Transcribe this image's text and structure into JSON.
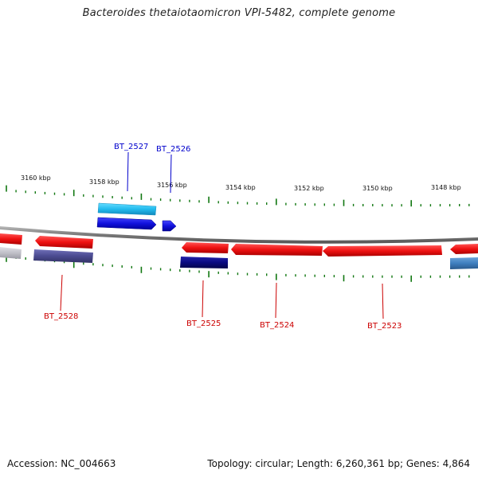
{
  "title": "Bacteroides thetaiotaomicron VPI-5482, complete genome",
  "footer": {
    "accession": "Accession: NC_004663",
    "summary": "Topology: circular; Length: 6,260,361 bp; Genes: 4,864"
  },
  "colors": {
    "backbone": "#8a8a8a",
    "tick": "#117711",
    "label_blue": "#0000cc",
    "label_red": "#cc0000",
    "red_gene": "#ee1111",
    "blue_gene": "#1111dd",
    "cyan_gene": "#22bbee",
    "navy_gene": "#0a0a80",
    "slate_gene": "#4a4a90",
    "steel_gene": "#3f7fbf",
    "gray_gene": "#c0c0c8"
  },
  "kbp_labels": [
    "3160 kbp",
    "3158 kbp",
    "3156 kbp",
    "3154 kbp",
    "3152 kbp",
    "3150 kbp",
    "3148 kbp"
  ],
  "genes": [
    {
      "label": "BT_2527",
      "color": "blue"
    },
    {
      "label": "BT_2526",
      "color": "blue"
    },
    {
      "label": "BT_2528",
      "color": "red"
    },
    {
      "label": "BT_2525",
      "color": "red"
    },
    {
      "label": "BT_2524",
      "color": "red"
    },
    {
      "label": "BT_2523",
      "color": "red"
    }
  ]
}
